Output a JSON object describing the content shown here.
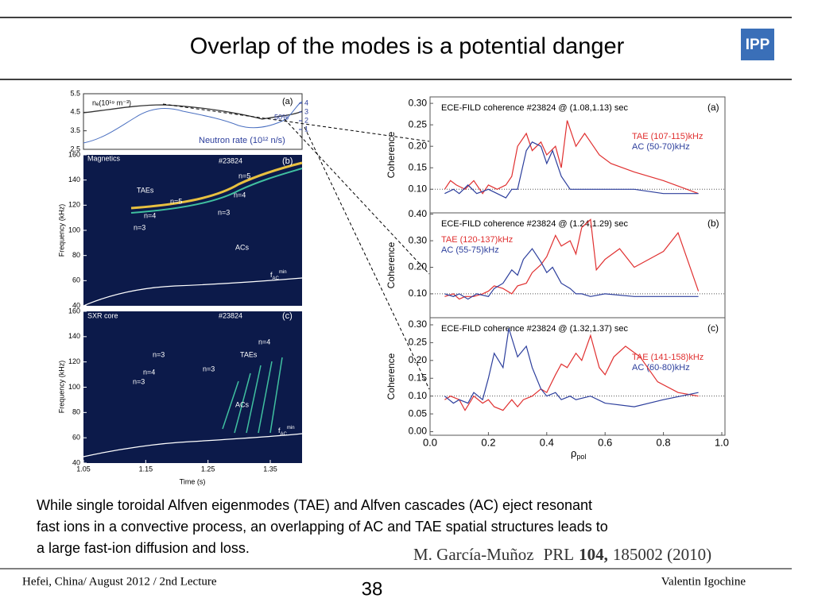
{
  "header": {
    "title": "Overlap of the modes is a potential danger",
    "logo": "IPP"
  },
  "left_figure": {
    "panel_a": {
      "density_label": "nₑ(10¹⁹ m⁻³)",
      "neutron_label": "Neutron rate (10¹² n/s)",
      "percent": "50%",
      "label": "(a)",
      "yticks": [
        5.5,
        4.5,
        3.5,
        2.5
      ],
      "y2ticks": [
        4,
        3,
        2,
        1
      ]
    },
    "panel_b": {
      "name": "Magnetics",
      "shot": "#23824",
      "label": "(b)",
      "taes": "TAEs",
      "acs": "ACs",
      "fac": "f",
      "fac_sub": "AC",
      "fac_sup": "min",
      "modes": [
        "n=5",
        "n=5",
        "n=4",
        "n=4",
        "n=3",
        "n=3"
      ]
    },
    "panel_c": {
      "name": "SXR core",
      "shot": "#23824",
      "label": "(c)",
      "taes": "TAEs",
      "acs": "ACs",
      "fac": "f",
      "fac_sub": "AC",
      "fac_sup": "min",
      "modes": [
        "n=4",
        "n=3",
        "n=3",
        "n=4",
        "n=3"
      ]
    },
    "yticks": [
      160,
      140,
      120,
      100,
      80,
      60,
      40
    ],
    "ylabel": "Frequency (kHz)",
    "xticks": [
      1.05,
      1.15,
      1.25,
      1.35
    ],
    "xlabel": "Time (s)"
  },
  "coherence": {
    "type": "line",
    "ylabel": "Coherence",
    "xlabel": "ρ",
    "xlabel_sub": "pol",
    "xlim": [
      0,
      1
    ],
    "xticks": [
      {
        "value": 0,
        "label": "0.0"
      },
      {
        "value": 0.2,
        "label": "0.2"
      },
      {
        "value": 0.4,
        "label": "0.4"
      },
      {
        "value": 0.6,
        "label": "0.6"
      },
      {
        "value": 0.8,
        "label": "0.8"
      },
      {
        "value": 1,
        "label": "1.0"
      }
    ],
    "panels": [
      {
        "title": "ECE-FILD coherence #23824 @ (1.08,1.13) sec",
        "label": "(a)",
        "legend": "right",
        "ylim": [
          0.045,
          0.315
        ],
        "yticks": [
          {
            "value": 0.1,
            "label": "0.10"
          },
          {
            "value": 0.15,
            "label": "0.15"
          },
          {
            "value": 0.2,
            "label": "0.20"
          },
          {
            "value": 0.25,
            "label": "0.25"
          },
          {
            "value": 0.3,
            "label": "0.30"
          }
        ],
        "series": [
          {
            "name": "TAE (107-115)kHz",
            "color": "#e03030",
            "x": [
              0.05,
              0.07,
              0.09,
              0.12,
              0.15,
              0.18,
              0.2,
              0.23,
              0.26,
              0.28,
              0.3,
              0.33,
              0.35,
              0.38,
              0.4,
              0.43,
              0.45,
              0.47,
              0.5,
              0.53,
              0.55,
              0.58,
              0.62,
              0.7,
              0.8,
              0.92
            ],
            "values": [
              0.1,
              0.12,
              0.11,
              0.1,
              0.12,
              0.09,
              0.11,
              0.1,
              0.11,
              0.13,
              0.2,
              0.23,
              0.19,
              0.21,
              0.18,
              0.2,
              0.15,
              0.26,
              0.2,
              0.23,
              0.21,
              0.18,
              0.16,
              0.14,
              0.12,
              0.09
            ]
          },
          {
            "name": "AC (50-70)kHz",
            "color": "#2c3e9c",
            "x": [
              0.05,
              0.08,
              0.1,
              0.13,
              0.16,
              0.2,
              0.23,
              0.26,
              0.28,
              0.3,
              0.33,
              0.35,
              0.38,
              0.4,
              0.42,
              0.45,
              0.48,
              0.5,
              0.55,
              0.6,
              0.7,
              0.8,
              0.92
            ],
            "values": [
              0.09,
              0.1,
              0.09,
              0.11,
              0.09,
              0.1,
              0.09,
              0.08,
              0.1,
              0.1,
              0.19,
              0.21,
              0.2,
              0.16,
              0.19,
              0.13,
              0.1,
              0.1,
              0.1,
              0.1,
              0.1,
              0.09,
              0.09
            ]
          }
        ]
      },
      {
        "title": "ECE-FILD coherence #23824 @ (1.24,1.29) sec",
        "label": "(b)",
        "legend": "left",
        "ylim": [
          0.01,
          0.405
        ],
        "yticks": [
          {
            "value": 0.1,
            "label": "0.10"
          },
          {
            "value": 0.2,
            "label": "0.20"
          },
          {
            "value": 0.3,
            "label": "0.30"
          },
          {
            "value": 0.4,
            "label": "0.40"
          }
        ],
        "series": [
          {
            "name": "TAE (120-137)kHz",
            "color": "#e03030",
            "x": [
              0.05,
              0.08,
              0.1,
              0.12,
              0.15,
              0.18,
              0.2,
              0.22,
              0.25,
              0.28,
              0.3,
              0.33,
              0.35,
              0.38,
              0.4,
              0.43,
              0.45,
              0.48,
              0.5,
              0.52,
              0.55,
              0.57,
              0.6,
              0.65,
              0.7,
              0.75,
              0.8,
              0.85,
              0.92
            ],
            "values": [
              0.09,
              0.1,
              0.08,
              0.09,
              0.09,
              0.1,
              0.11,
              0.13,
              0.12,
              0.1,
              0.13,
              0.14,
              0.18,
              0.21,
              0.24,
              0.32,
              0.28,
              0.3,
              0.25,
              0.35,
              0.38,
              0.19,
              0.23,
              0.27,
              0.2,
              0.23,
              0.26,
              0.33,
              0.11
            ]
          },
          {
            "name": "AC (55-75)kHz",
            "color": "#2c3e9c",
            "x": [
              0.05,
              0.08,
              0.1,
              0.13,
              0.16,
              0.2,
              0.22,
              0.25,
              0.28,
              0.3,
              0.32,
              0.35,
              0.38,
              0.4,
              0.42,
              0.45,
              0.48,
              0.5,
              0.52,
              0.55,
              0.6,
              0.7,
              0.8,
              0.92
            ],
            "values": [
              0.1,
              0.09,
              0.1,
              0.08,
              0.1,
              0.09,
              0.12,
              0.14,
              0.19,
              0.17,
              0.23,
              0.27,
              0.22,
              0.18,
              0.2,
              0.14,
              0.12,
              0.1,
              0.1,
              0.09,
              0.1,
              0.09,
              0.09,
              0.09
            ]
          }
        ]
      },
      {
        "title": "ECE-FILD coherence #23824 @ (1.32,1.37) sec",
        "label": "(c)",
        "legend": "right",
        "ylim": [
          -0.01,
          0.32
        ],
        "yticks": [
          {
            "value": 0,
            "label": "0.00"
          },
          {
            "value": 0.05,
            "label": "0.05"
          },
          {
            "value": 0.1,
            "label": "0.10"
          },
          {
            "value": 0.15,
            "label": "0.15"
          },
          {
            "value": 0.2,
            "label": "0.20"
          },
          {
            "value": 0.25,
            "label": "0.25"
          },
          {
            "value": 0.3,
            "label": "0.30"
          }
        ],
        "series": [
          {
            "name": "TAE (141-158)kHz",
            "color": "#e03030",
            "x": [
              0.05,
              0.07,
              0.1,
              0.12,
              0.15,
              0.18,
              0.2,
              0.22,
              0.25,
              0.28,
              0.3,
              0.32,
              0.35,
              0.38,
              0.4,
              0.43,
              0.45,
              0.47,
              0.5,
              0.52,
              0.55,
              0.58,
              0.6,
              0.63,
              0.67,
              0.72,
              0.78,
              0.85,
              0.92
            ],
            "values": [
              0.09,
              0.1,
              0.09,
              0.06,
              0.1,
              0.08,
              0.09,
              0.07,
              0.06,
              0.09,
              0.07,
              0.09,
              0.1,
              0.12,
              0.11,
              0.16,
              0.19,
              0.18,
              0.22,
              0.2,
              0.27,
              0.18,
              0.16,
              0.21,
              0.24,
              0.21,
              0.14,
              0.11,
              0.1
            ]
          },
          {
            "name": "AC (60-80)kHz",
            "color": "#2c3e9c",
            "x": [
              0.05,
              0.08,
              0.1,
              0.13,
              0.15,
              0.18,
              0.2,
              0.22,
              0.25,
              0.27,
              0.3,
              0.33,
              0.35,
              0.38,
              0.4,
              0.43,
              0.45,
              0.48,
              0.5,
              0.55,
              0.6,
              0.7,
              0.8,
              0.92
            ],
            "values": [
              0.1,
              0.08,
              0.09,
              0.08,
              0.11,
              0.09,
              0.15,
              0.22,
              0.18,
              0.29,
              0.21,
              0.24,
              0.18,
              0.12,
              0.1,
              0.11,
              0.09,
              0.1,
              0.09,
              0.1,
              0.08,
              0.07,
              0.09,
              0.11
            ]
          }
        ]
      }
    ]
  },
  "body": {
    "lines": [
      "While single toroidal Alfven eigenmodes (TAE) and Alfven cascades (AC) eject resonant",
      "fast ions in a convective process, an overlapping of AC and TAE spatial structures leads to",
      "a large fast-ion diffusion and loss."
    ]
  },
  "citation": {
    "author": "M. García-Muñoz",
    "journal": "PRL",
    "volume": "104,",
    "id": "185002 (2010)"
  },
  "footer": {
    "left": "Hefei, China/ August 2012 / 2nd Lecture",
    "page": "38",
    "right": "Valentin Igochine"
  }
}
